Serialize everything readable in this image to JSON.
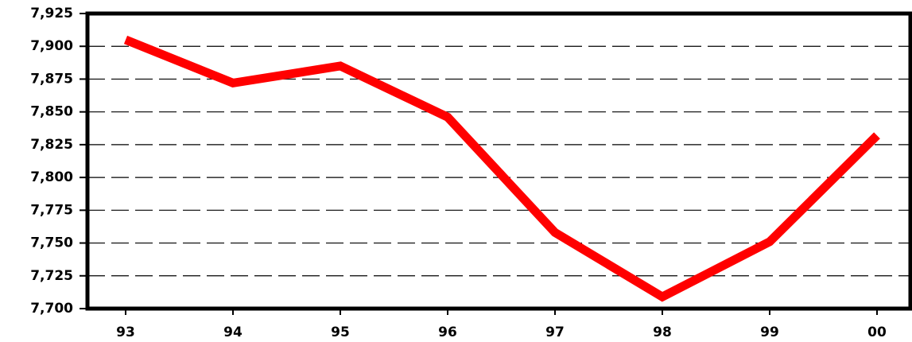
{
  "chart_data": {
    "type": "line",
    "categories": [
      "93",
      "94",
      "95",
      "96",
      "97",
      "98",
      "99",
      "00"
    ],
    "series": [
      {
        "name": "Series",
        "color": "#ff0000",
        "values": [
          7905,
          7872,
          7885,
          7846,
          7758,
          7709,
          7751,
          7832
        ]
      }
    ],
    "ylim": [
      7700,
      7925
    ],
    "yticks": [
      {
        "value": 7700,
        "label": "7,700"
      },
      {
        "value": 7725,
        "label": "7,725"
      },
      {
        "value": 7750,
        "label": "7,750"
      },
      {
        "value": 7775,
        "label": "7,775"
      },
      {
        "value": 7800,
        "label": "7,800"
      },
      {
        "value": 7825,
        "label": "7,825"
      },
      {
        "value": 7850,
        "label": "7,850"
      },
      {
        "value": 7875,
        "label": "7,875"
      },
      {
        "value": 7900,
        "label": "7,900"
      },
      {
        "value": 7925,
        "label": "7,925"
      }
    ],
    "grid": true
  }
}
